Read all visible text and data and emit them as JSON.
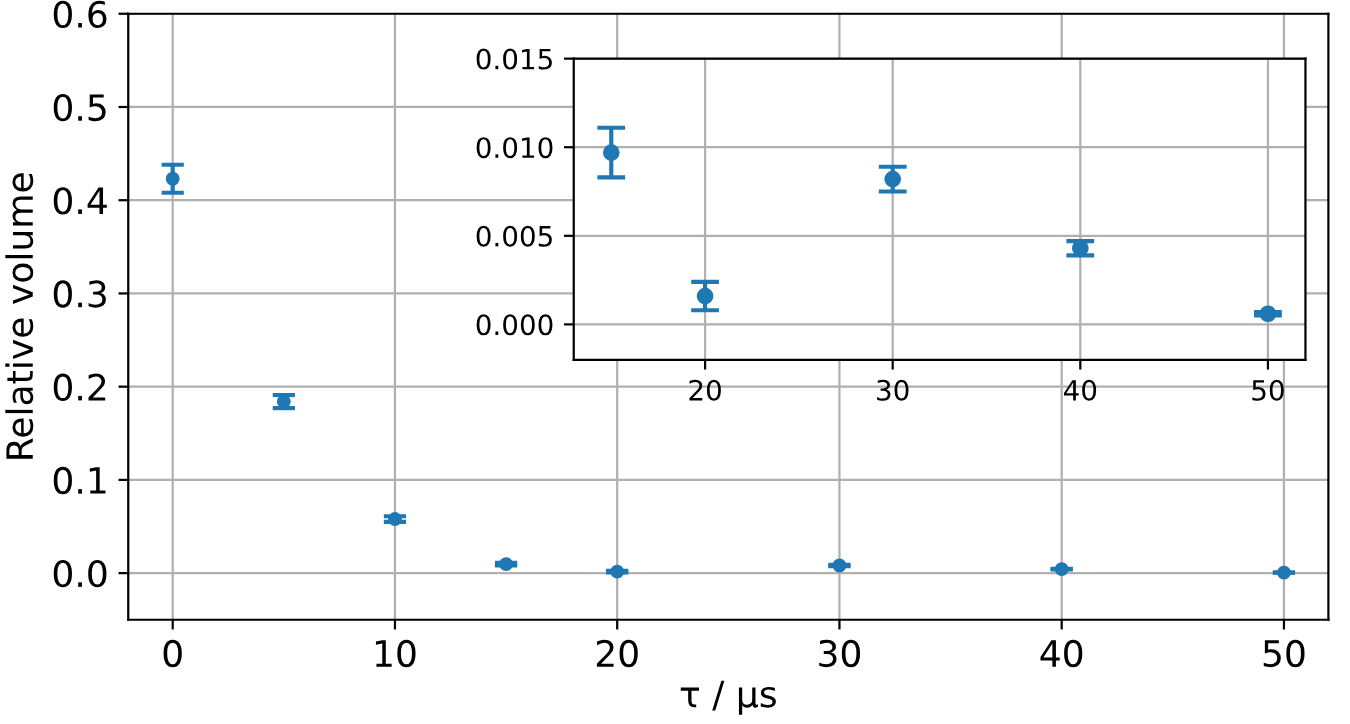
{
  "chart_data": [
    {
      "type": "scatter",
      "xlabel": "τ / μs",
      "ylabel": "Relative volume",
      "x": [
        0,
        5,
        10,
        15,
        20,
        30,
        40,
        50
      ],
      "series": [
        {
          "color": "#1f77b4",
          "values": [
            0.423,
            0.184,
            0.058,
            0.0097,
            0.0016,
            0.0082,
            0.0043,
            0.0006
          ],
          "errors": [
            0.015,
            0.007,
            0.003,
            0.0014,
            0.0008,
            0.0007,
            0.0004,
            0.0001
          ]
        }
      ],
      "xlim": [
        -2,
        52
      ],
      "ylim": [
        -0.05,
        0.6
      ],
      "xticks": [
        0,
        10,
        20,
        30,
        40,
        50
      ],
      "yticks": [
        {
          "value": 0,
          "label": "0.0"
        },
        0.1,
        0.2,
        0.3,
        0.4,
        0.5,
        0.6
      ],
      "grid": true,
      "marker": "circle"
    },
    {
      "type": "scatter",
      "x": [
        15,
        20,
        30,
        40,
        50
      ],
      "series": [
        {
          "color": "#1f77b4",
          "values": [
            0.0097,
            0.0016,
            0.0082,
            0.0043,
            0.0006
          ],
          "errors": [
            0.0014,
            0.0008,
            0.0007,
            0.0004,
            0.0001
          ]
        }
      ],
      "xlim": [
        13,
        52
      ],
      "ylim": [
        -0.002,
        0.015
      ],
      "xticks": [
        20,
        30,
        40,
        50
      ],
      "yticks": [
        {
          "value": 0,
          "label": "0.000"
        },
        {
          "value": 0.005,
          "label": "0.005"
        },
        {
          "value": 0.01,
          "label": "0.010"
        },
        {
          "value": 0.015,
          "label": "0.015"
        }
      ],
      "grid": true,
      "marker": "circle"
    }
  ]
}
